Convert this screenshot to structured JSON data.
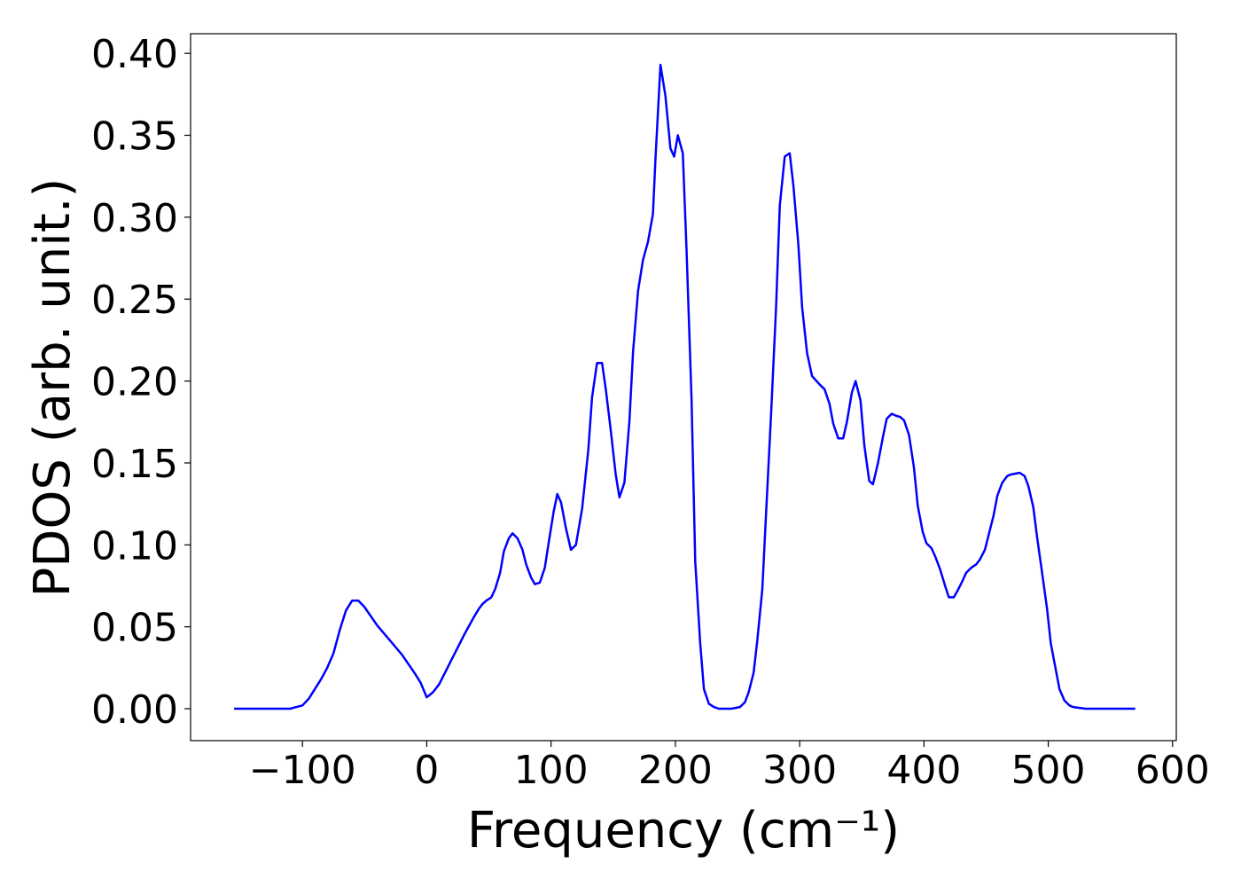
{
  "chart_data": {
    "type": "line",
    "xlabel": "Frequency (cm⁻¹)",
    "ylabel": "PDOS (arb. unit.)",
    "color": "#0000ff",
    "x": [
      -155,
      -110,
      -100,
      -95,
      -90,
      -85,
      -80,
      -75,
      -70,
      -65,
      -60,
      -55,
      -50,
      -40,
      -30,
      -20,
      -10,
      -5,
      0,
      5,
      10,
      20,
      30,
      38,
      42,
      45,
      48,
      52,
      55,
      59,
      62,
      66,
      69,
      73,
      77,
      80,
      84,
      87,
      91,
      95,
      98,
      102,
      105,
      108,
      112,
      116,
      120,
      125,
      130,
      133,
      137,
      141,
      144,
      148,
      152,
      155,
      159,
      163,
      166,
      170,
      174,
      178,
      182,
      184,
      188,
      192,
      196,
      199,
      202,
      206,
      209,
      213,
      216,
      220,
      223,
      227,
      231,
      235,
      245,
      252,
      256,
      259,
      263,
      266,
      270,
      273,
      277,
      281,
      284,
      288,
      292,
      295,
      299,
      302,
      306,
      310,
      316,
      320,
      324,
      327,
      331,
      335,
      338,
      342,
      345,
      349,
      352,
      356,
      359,
      363,
      367,
      370,
      374,
      377,
      381,
      384,
      388,
      392,
      395,
      399,
      402,
      406,
      409,
      413,
      417,
      420,
      424,
      427,
      431,
      434,
      438,
      442,
      445,
      449,
      452,
      456,
      459,
      463,
      467,
      470,
      477,
      481,
      484,
      488,
      491,
      495,
      499,
      502,
      506,
      509,
      513,
      517,
      520,
      530,
      570
    ],
    "values": [
      0,
      0,
      0.002,
      0.006,
      0.012,
      0.018,
      0.025,
      0.034,
      0.048,
      0.06,
      0.066,
      0.066,
      0.062,
      0.051,
      0.042,
      0.033,
      0.022,
      0.016,
      0.007,
      0.01,
      0.015,
      0.03,
      0.045,
      0.056,
      0.061,
      0.064,
      0.066,
      0.068,
      0.073,
      0.083,
      0.096,
      0.104,
      0.107,
      0.104,
      0.097,
      0.088,
      0.08,
      0.076,
      0.077,
      0.086,
      0.101,
      0.12,
      0.131,
      0.126,
      0.11,
      0.097,
      0.1,
      0.122,
      0.158,
      0.19,
      0.211,
      0.211,
      0.195,
      0.17,
      0.143,
      0.129,
      0.138,
      0.175,
      0.218,
      0.255,
      0.274,
      0.285,
      0.302,
      0.335,
      0.393,
      0.374,
      0.342,
      0.337,
      0.35,
      0.339,
      0.28,
      0.19,
      0.09,
      0.04,
      0.012,
      0.003,
      0.001,
      0,
      0,
      0.001,
      0.004,
      0.01,
      0.022,
      0.042,
      0.073,
      0.12,
      0.18,
      0.245,
      0.307,
      0.337,
      0.339,
      0.319,
      0.283,
      0.245,
      0.217,
      0.203,
      0.198,
      0.195,
      0.186,
      0.174,
      0.165,
      0.165,
      0.175,
      0.193,
      0.2,
      0.188,
      0.161,
      0.139,
      0.137,
      0.15,
      0.166,
      0.177,
      0.18,
      0.179,
      0.178,
      0.176,
      0.167,
      0.147,
      0.124,
      0.108,
      0.101,
      0.098,
      0.093,
      0.085,
      0.075,
      0.068,
      0.068,
      0.072,
      0.078,
      0.083,
      0.086,
      0.088,
      0.091,
      0.097,
      0.106,
      0.118,
      0.13,
      0.138,
      0.142,
      0.143,
      0.144,
      0.142,
      0.136,
      0.123,
      0.105,
      0.083,
      0.061,
      0.04,
      0.024,
      0.012,
      0.005,
      0.002,
      0.001,
      0,
      0
    ],
    "xlim": [
      -190,
      603
    ],
    "ylim": [
      -0.0195,
      0.412
    ],
    "xticks": [
      {
        "value": -100,
        "label": "−100"
      },
      0,
      100,
      200,
      300,
      400,
      500,
      600
    ],
    "yticks": [
      {
        "value": 0,
        "label": "0.00"
      },
      {
        "value": 0.05,
        "label": "0.05"
      },
      {
        "value": 0.1,
        "label": "0.10"
      },
      {
        "value": 0.15,
        "label": "0.15"
      },
      {
        "value": 0.2,
        "label": "0.20"
      },
      {
        "value": 0.25,
        "label": "0.25"
      },
      {
        "value": 0.3,
        "label": "0.30"
      },
      {
        "value": 0.35,
        "label": "0.35"
      },
      {
        "value": 0.4,
        "label": "0.40"
      }
    ]
  }
}
